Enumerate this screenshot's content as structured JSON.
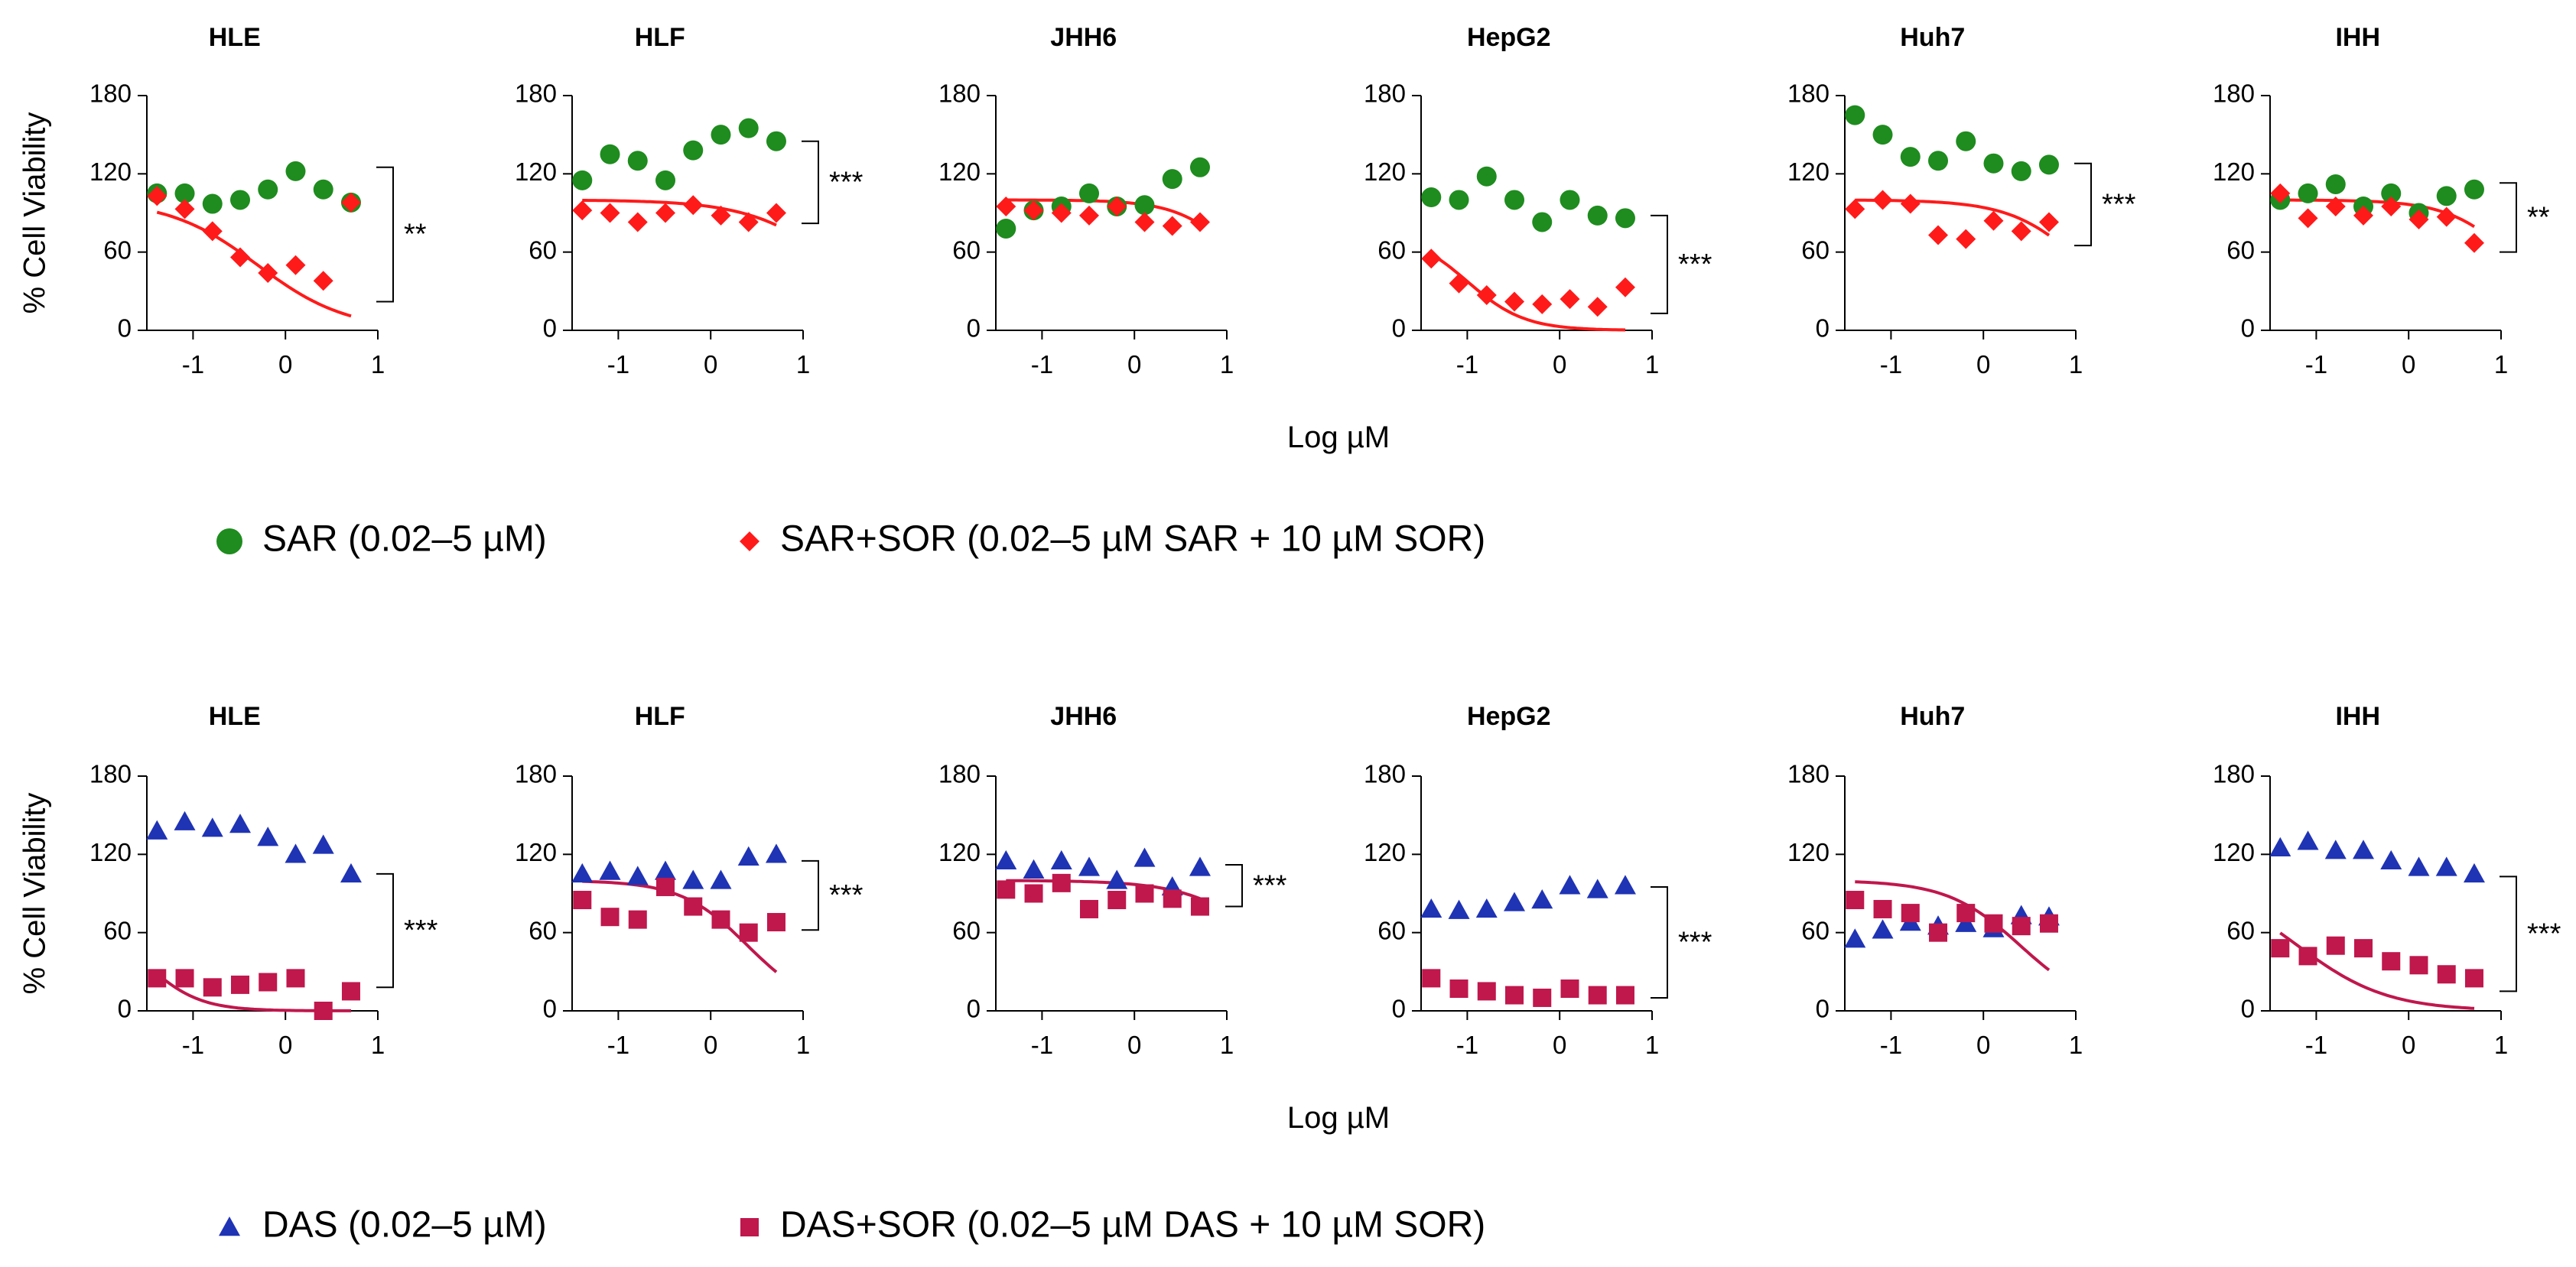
{
  "chart_data": [
    {
      "type": "scatter",
      "row": "SAR",
      "xlabel": "Log µM",
      "ylabel": "% Cell Viability",
      "xlim": [
        -1.5,
        1
      ],
      "ylim": [
        0,
        180
      ],
      "xticks": [
        -1,
        0,
        1
      ],
      "yticks": [
        0,
        60,
        120,
        180
      ],
      "x": [
        -1.39,
        -1.09,
        -0.79,
        -0.49,
        -0.19,
        0.11,
        0.41,
        0.71
      ],
      "legend": [
        {
          "key": "single",
          "label": "SAR (0.02–5 µM)",
          "color": "#1e8c1e",
          "marker": "circle"
        },
        {
          "key": "combo",
          "label": "SAR+SOR (0.02–5 µM SAR + 10 µM SOR)",
          "color": "#ff1a1a",
          "marker": "diamond"
        }
      ],
      "panels": [
        {
          "title": "HLE",
          "single": [
            105,
            105,
            97,
            100,
            108,
            122,
            108,
            98
          ],
          "combo": [
            103,
            93,
            76,
            56,
            44,
            50,
            38,
            98
          ],
          "fit": {
            "top": 100,
            "ec50": -0.3,
            "hill": 0.9
          },
          "sig": "**",
          "bracket": [
            125,
            22
          ]
        },
        {
          "title": "HLF",
          "single": [
            115,
            135,
            130,
            115,
            138,
            150,
            155,
            145
          ],
          "combo": [
            92,
            90,
            83,
            90,
            96,
            88,
            83,
            90
          ],
          "fit": {
            "top": 100,
            "ec50": 1.4,
            "hill": 0.9
          },
          "sig": "***",
          "bracket": [
            145,
            82
          ]
        },
        {
          "title": "JHH6",
          "single": [
            78,
            92,
            95,
            105,
            95,
            96,
            116,
            125
          ],
          "combo": [
            95,
            92,
            90,
            88,
            95,
            83,
            80,
            83
          ],
          "fit": {
            "top": 100,
            "ec50": 1.2,
            "hill": 1.3
          },
          "sig": "",
          "bracket": null
        },
        {
          "title": "HepG2",
          "single": [
            102,
            100,
            118,
            100,
            83,
            100,
            88,
            86
          ],
          "combo": [
            55,
            36,
            27,
            22,
            20,
            24,
            18,
            33
          ],
          "fit": {
            "top": 75,
            "ec50": -1.0,
            "hill": 1.4
          },
          "sig": "***",
          "bracket": [
            88,
            13
          ]
        },
        {
          "title": "Huh7",
          "single": [
            165,
            150,
            133,
            130,
            145,
            128,
            122,
            127
          ],
          "combo": [
            93,
            100,
            97,
            73,
            70,
            84,
            76,
            83
          ],
          "fit": {
            "top": 100,
            "ec50": 1.1,
            "hill": 1.1
          },
          "sig": "***",
          "bracket": [
            128,
            65
          ]
        },
        {
          "title": "IHH",
          "single": [
            100,
            105,
            112,
            95,
            105,
            90,
            103,
            108
          ],
          "combo": [
            105,
            86,
            95,
            88,
            95,
            85,
            87,
            67
          ],
          "fit": {
            "top": 100,
            "ec50": 1.2,
            "hill": 1.2
          },
          "sig": "**",
          "bracket": [
            113,
            60
          ]
        }
      ]
    },
    {
      "type": "scatter",
      "row": "DAS",
      "xlabel": "Log µM",
      "ylabel": "% Cell Viability",
      "xlim": [
        -1.5,
        1
      ],
      "ylim": [
        0,
        180
      ],
      "xticks": [
        -1,
        0,
        1
      ],
      "yticks": [
        0,
        60,
        120,
        180
      ],
      "x": [
        -1.39,
        -1.09,
        -0.79,
        -0.49,
        -0.19,
        0.11,
        0.41,
        0.71
      ],
      "legend": [
        {
          "key": "single",
          "label": "DAS (0.02–5 µM)",
          "color": "#1f33b5",
          "marker": "triangle"
        },
        {
          "key": "combo",
          "label": "DAS+SOR (0.02–5 µM DAS + 10 µM SOR)",
          "color": "#c0174d",
          "marker": "square"
        }
      ],
      "panels": [
        {
          "title": "HLE",
          "single": [
            138,
            145,
            140,
            143,
            133,
            120,
            127,
            105
          ],
          "combo": [
            25,
            25,
            18,
            20,
            22,
            25,
            0,
            15
          ],
          "fit": {
            "top": 70,
            "ec50": -1.5,
            "hill": 1.5
          },
          "sig": "***",
          "bracket": [
            105,
            18
          ]
        },
        {
          "title": "HLF",
          "single": [
            105,
            107,
            103,
            107,
            100,
            100,
            118,
            120
          ],
          "combo": [
            85,
            72,
            70,
            95,
            80,
            70,
            60,
            68
          ],
          "fit": {
            "top": 100,
            "ec50": 0.4,
            "hill": 1.2
          },
          "sig": "***",
          "bracket": [
            115,
            62
          ]
        },
        {
          "title": "JHH6",
          "single": [
            115,
            108,
            115,
            110,
            100,
            117,
            95,
            110
          ],
          "combo": [
            93,
            90,
            98,
            78,
            85,
            90,
            86,
            80
          ],
          "fit": {
            "top": 100,
            "ec50": 1.5,
            "hill": 1.0
          },
          "sig": "***",
          "bracket": [
            112,
            80
          ]
        },
        {
          "title": "HepG2",
          "single": [
            78,
            77,
            78,
            83,
            85,
            96,
            93,
            96
          ],
          "combo": [
            25,
            17,
            15,
            12,
            10,
            17,
            12,
            12
          ],
          "fit": null,
          "sig": "***",
          "bracket": [
            95,
            10
          ]
        },
        {
          "title": "Huh7",
          "single": [
            55,
            62,
            68,
            65,
            67,
            63,
            73,
            72
          ],
          "combo": [
            85,
            78,
            75,
            60,
            75,
            67,
            65,
            67
          ],
          "fit": {
            "top": 100,
            "ec50": 0.4,
            "hill": 1.1
          },
          "sig": "",
          "bracket": null
        },
        {
          "title": "IHH",
          "single": [
            125,
            130,
            123,
            123,
            115,
            110,
            110,
            105
          ],
          "combo": [
            48,
            42,
            50,
            48,
            38,
            35,
            28,
            25
          ],
          "fit": {
            "top": 100,
            "ec50": -1.2,
            "hill": 0.9
          },
          "sig": "***",
          "bracket": [
            103,
            15
          ]
        }
      ]
    }
  ]
}
